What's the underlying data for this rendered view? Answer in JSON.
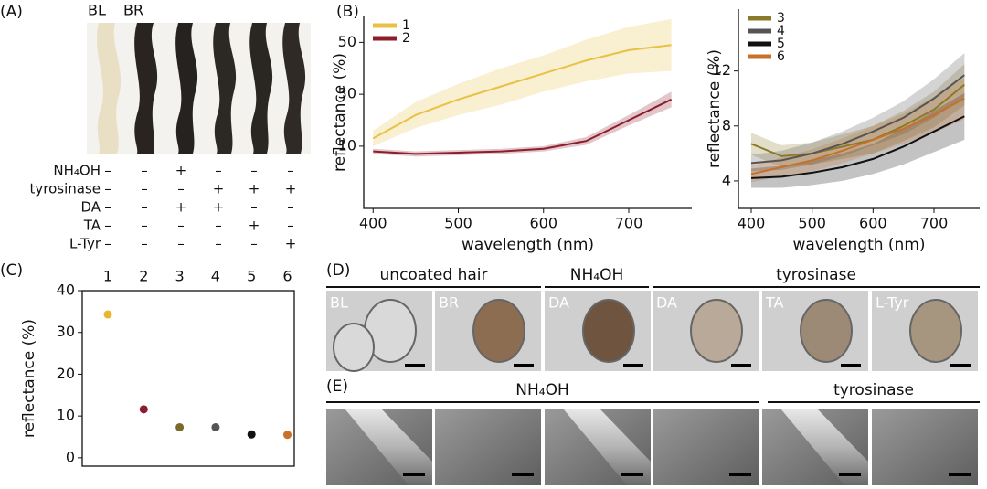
{
  "panel_labels": [
    "(A)",
    "(B)",
    "(C)",
    "(D)",
    "(E)"
  ],
  "panel_a": {
    "strands": [
      "BL",
      "BR"
    ],
    "rows": [
      {
        "label": "NH₄OH",
        "marks": [
          "–",
          "–",
          "+",
          "–",
          "–",
          "–"
        ]
      },
      {
        "label": "tyrosinase",
        "marks": [
          "–",
          "–",
          "–",
          "+",
          "+",
          "+"
        ]
      },
      {
        "label": "DA",
        "marks": [
          "–",
          "–",
          "+",
          "+",
          "–",
          "–"
        ]
      },
      {
        "label": "TA",
        "marks": [
          "–",
          "–",
          "–",
          "–",
          "+",
          "–"
        ]
      },
      {
        "label": "L-Tyr",
        "marks": [
          "–",
          "–",
          "–",
          "–",
          "–",
          "+"
        ]
      }
    ]
  },
  "chart_data": [
    {
      "type": "line",
      "x_label": "wavelength (nm)",
      "y_label": "reflectance (%)",
      "x": [
        400,
        450,
        500,
        550,
        600,
        650,
        700,
        750
      ],
      "xlim": [
        389,
        774
      ],
      "xticks": [
        400,
        500,
        600,
        700
      ],
      "ylim": [
        -14,
        60
      ],
      "yticks": [
        10,
        30,
        50
      ],
      "legend": "upper left",
      "series": [
        {
          "name": "1",
          "color": "#e8c146",
          "values": [
            13,
            22,
            28,
            33,
            38,
            43,
            47,
            49
          ],
          "spread": [
            3,
            5,
            6,
            7,
            7,
            8,
            9,
            10
          ]
        },
        {
          "name": "2",
          "color": "#8b1d2c",
          "values": [
            8,
            7,
            7.5,
            8,
            9,
            12,
            20,
            28
          ],
          "spread": [
            1,
            1,
            1,
            1,
            1,
            1.5,
            2,
            3
          ]
        }
      ]
    },
    {
      "type": "line",
      "x_label": "wavelength (nm)",
      "y_label": "reflectance (%)",
      "x": [
        400,
        450,
        500,
        550,
        600,
        650,
        700,
        750
      ],
      "xlim": [
        379,
        775
      ],
      "xticks": [
        400,
        500,
        600,
        700
      ],
      "ylim": [
        2,
        16.5
      ],
      "yticks": [
        4,
        8,
        12
      ],
      "legend": "upper left",
      "series": [
        {
          "name": "3",
          "color": "#8b7a2a",
          "values": [
            6.7,
            5.8,
            6,
            6.5,
            7,
            8,
            9.2,
            11
          ],
          "spread": [
            0.8,
            0.8,
            0.8,
            0.9,
            1,
            1.1,
            1.3,
            1.5
          ]
        },
        {
          "name": "4",
          "color": "#555555",
          "values": [
            5.3,
            5.5,
            6,
            6.7,
            7.6,
            8.6,
            10,
            11.7
          ],
          "spread": [
            0.6,
            0.7,
            0.8,
            0.9,
            1,
            1.2,
            1.4,
            1.6
          ]
        },
        {
          "name": "5",
          "color": "#111111",
          "values": [
            4.2,
            4.3,
            4.6,
            5,
            5.6,
            6.5,
            7.6,
            8.7
          ],
          "spread": [
            0.7,
            0.8,
            0.9,
            1,
            1.1,
            1.3,
            1.5,
            1.7
          ]
        },
        {
          "name": "6",
          "color": "#c8702a",
          "values": [
            4.5,
            5,
            5.5,
            6.2,
            7,
            7.8,
            8.8,
            10
          ],
          "spread": [
            0.6,
            0.7,
            0.8,
            0.9,
            1,
            1.1,
            1.3,
            1.5
          ]
        }
      ]
    },
    {
      "type": "scatter",
      "y_label": "reflectance (%)",
      "categories": [
        "1",
        "2",
        "3",
        "4",
        "5",
        "6"
      ],
      "values": [
        34.3,
        11.6,
        7.3,
        7.3,
        5.6,
        5.5
      ],
      "colors": [
        "#e8b730",
        "#8b1d2c",
        "#7a6a28",
        "#555555",
        "#111111",
        "#c8702a"
      ],
      "ylim": [
        -2,
        40
      ],
      "yticks": [
        0,
        10,
        20,
        30,
        40
      ]
    }
  ],
  "panel_d": {
    "groups": [
      "uncoated hair",
      "NH₄OH",
      "tyrosinase"
    ],
    "images": [
      "BL",
      "BR",
      "DA",
      "DA",
      "TA",
      "L-Tyr"
    ]
  },
  "panel_e": {
    "groups": [
      "NH₄OH",
      "tyrosinase"
    ]
  }
}
